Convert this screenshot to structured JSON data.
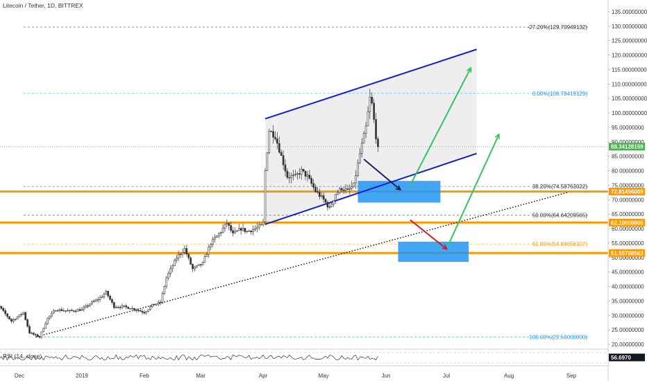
{
  "header": {
    "symbol_title": "Litecoin / Tether, 1D, BITTREX"
  },
  "rsi": {
    "title": "RSI (14, close)",
    "value_label": "56.6970"
  },
  "colors": {
    "background": "#ffffff",
    "up_candle": "#333333",
    "down_candle": "#333333",
    "fib_line": "#555555",
    "fib_blue": "#2196f3",
    "channel": "#0d1fd6",
    "support": "#ff9800",
    "box": "#2196f3",
    "arrow_green": "#33c45c",
    "arrow_red": "#cc1f1f",
    "arrow_navy": "#1a2060",
    "current_price": "#4caf50",
    "trendline": "#000000"
  },
  "chart_data": {
    "type": "candlestick",
    "title": "Litecoin / Tether, 1D, BITTREX",
    "y_scale": "linear",
    "ylim": [
      17,
      138
    ],
    "y_ticks": [
      20,
      25,
      30,
      35,
      40,
      45,
      50,
      55,
      60,
      65,
      70,
      75,
      80,
      85,
      90,
      95,
      100,
      105,
      110,
      115,
      120,
      125,
      130,
      135
    ],
    "y_tick_labels": [
      "20.00000000",
      "25.00000000",
      "30.00000000",
      "35.00000000",
      "40.00000000",
      "45.00000000",
      "50.00000000",
      "55.00000000",
      "60.00000000",
      "65.00000000",
      "70.00000000",
      "75.00000000",
      "80.00000000",
      "85.00000000",
      "90.00000000",
      "95.00000000",
      "100.00000000",
      "105.00000000",
      "110.00000000",
      "115.00000000",
      "120.00000000",
      "125.00000000",
      "130.00000000",
      "135.00000000"
    ],
    "x_day_range": [
      -16,
      272
    ],
    "x_ticks": [
      {
        "label": "Dec",
        "day": 0
      },
      {
        "label": "2019",
        "day": 31
      },
      {
        "label": "Feb",
        "day": 62
      },
      {
        "label": "Mar",
        "day": 90
      },
      {
        "label": "Apr",
        "day": 121
      },
      {
        "label": "May",
        "day": 151
      },
      {
        "label": "Jun",
        "day": 182
      },
      {
        "label": "Jul",
        "day": 212
      },
      {
        "label": "Aug",
        "day": 243
      },
      {
        "label": "Sep",
        "day": 274
      }
    ],
    "price_path": [
      [
        -16,
        36
      ],
      [
        -10,
        33
      ],
      [
        -4,
        28
      ],
      [
        2,
        31
      ],
      [
        5,
        24
      ],
      [
        10,
        22.5
      ],
      [
        14,
        29
      ],
      [
        18,
        32
      ],
      [
        25,
        31.5
      ],
      [
        31,
        32
      ],
      [
        35,
        34
      ],
      [
        40,
        36
      ],
      [
        43,
        38
      ],
      [
        47,
        33
      ],
      [
        52,
        33
      ],
      [
        58,
        32
      ],
      [
        62,
        31
      ],
      [
        66,
        33.5
      ],
      [
        70,
        34.5
      ],
      [
        73,
        43
      ],
      [
        78,
        50
      ],
      [
        82,
        53
      ],
      [
        86,
        46
      ],
      [
        91,
        48
      ],
      [
        95,
        55
      ],
      [
        100,
        59
      ],
      [
        103,
        62
      ],
      [
        106,
        58
      ],
      [
        110,
        60
      ],
      [
        113,
        59
      ],
      [
        117,
        60
      ],
      [
        120,
        61
      ],
      [
        121,
        62
      ],
      [
        122,
        80
      ],
      [
        124,
        94
      ],
      [
        127,
        92
      ],
      [
        130,
        85
      ],
      [
        133,
        78
      ],
      [
        137,
        78
      ],
      [
        140,
        80
      ],
      [
        143,
        78
      ],
      [
        147,
        73
      ],
      [
        151,
        70
      ],
      [
        154,
        67
      ],
      [
        157,
        72
      ],
      [
        160,
        74
      ],
      [
        163,
        73
      ],
      [
        166,
        75
      ],
      [
        169,
        86
      ],
      [
        172,
        95
      ],
      [
        174,
        105
      ],
      [
        175,
        103
      ],
      [
        177,
        92
      ],
      [
        178,
        88
      ]
    ],
    "current_price": {
      "value": 88.34128159,
      "label": "88.34128159"
    },
    "fibonacci": [
      {
        "level": "-27.20%",
        "price": 129.70949132,
        "label": "-27.20%(129.70949132)",
        "color": "#555555"
      },
      {
        "level": "0.00%",
        "price": 106.78419129,
        "label": "0.00%(106.78419129)",
        "color": "#2196f3"
      },
      {
        "level": "38.20%",
        "price": 74.58763022,
        "label": "38.20%(74.58763022)",
        "color": "#555555"
      },
      {
        "level": "50.00%",
        "price": 64.64209565,
        "label": "50.00%(64.64209565)",
        "color": "#555555"
      },
      {
        "level": "61.80%",
        "price": 54.69656107,
        "label": "61.80%(54.69656107)",
        "color": "#ff9800"
      },
      {
        "level": "100.00%",
        "price": 22.5,
        "label": "100.00%(22.50000000)",
        "color": "#2196f3"
      }
    ],
    "support_levels": [
      {
        "price": 72.81456009,
        "label": "72.81456009"
      },
      {
        "price": 62.1,
        "label": "62.10000000"
      },
      {
        "price": 51.55788563,
        "label": "51.55788563"
      }
    ],
    "channel": {
      "upper": [
        [
          122,
          98
        ],
        [
          227,
          122
        ]
      ],
      "lower": [
        [
          122,
          61.5
        ],
        [
          227,
          86
        ]
      ],
      "channel_start_top": [
        [
          122,
          61.5
        ],
        [
          122,
          98
        ]
      ]
    },
    "trendline": [
      [
        8,
        22.5
      ],
      [
        272,
        72.5
      ]
    ],
    "zones": [
      {
        "name": "upper-zone",
        "day_range": [
          168,
          209
        ],
        "price_range": [
          69,
          76.5
        ]
      },
      {
        "name": "lower-zone",
        "day_range": [
          188,
          223
        ],
        "price_range": [
          48.5,
          55.5
        ]
      }
    ],
    "arrows": [
      {
        "name": "navy-arrow",
        "from": [
          171,
          84
        ],
        "to": [
          189,
          73.5
        ],
        "color": "#1a2060"
      },
      {
        "name": "green-arrow-upper",
        "from": [
          194,
          75
        ],
        "to": [
          224,
          115.5
        ],
        "color": "#33c45c"
      },
      {
        "name": "red-arrow",
        "from": [
          194,
          63
        ],
        "to": [
          212,
          53
        ],
        "color": "#cc1f1f"
      },
      {
        "name": "green-arrow-lower",
        "from": [
          213,
          54.5
        ],
        "to": [
          238,
          92.5
        ],
        "color": "#33c45c"
      }
    ],
    "rsi_value": 56.697
  }
}
